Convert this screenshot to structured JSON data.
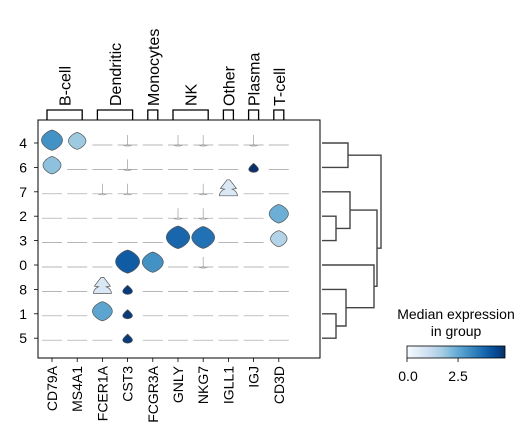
{
  "chart_data": {
    "type": "stacked_violin",
    "genes": [
      "CD79A",
      "MS4A1",
      "FCER1A",
      "CST3",
      "FCGR3A",
      "GNLY",
      "NKG7",
      "IGLL1",
      "IGJ",
      "CD3D"
    ],
    "groups": [
      "4",
      "6",
      "7",
      "2",
      "3",
      "0",
      "8",
      "1",
      "5"
    ],
    "gene_groups": [
      {
        "label": "B-cell",
        "genes": [
          "CD79A",
          "MS4A1"
        ]
      },
      {
        "label": "Dendritic",
        "genes": [
          "FCER1A",
          "CST3"
        ]
      },
      {
        "label": "Monocytes",
        "genes": [
          "FCGR3A"
        ]
      },
      {
        "label": "NK",
        "genes": [
          "GNLY",
          "NKG7"
        ]
      },
      {
        "label": "Other",
        "genes": [
          "IGLL1"
        ]
      },
      {
        "label": "Plasma",
        "genes": [
          "IGJ"
        ]
      },
      {
        "label": "T-cell",
        "genes": [
          "CD3D"
        ]
      }
    ],
    "median_expression": [
      [
        3.0,
        1.8,
        0.0,
        0.3,
        0.0,
        0.4,
        0.4,
        0.0,
        0.5,
        0.0
      ],
      [
        2.0,
        0.0,
        0.0,
        0.1,
        0.0,
        0.0,
        0.0,
        0.0,
        4.8,
        0.0
      ],
      [
        0.0,
        0.0,
        0.3,
        0.3,
        0.0,
        0.0,
        0.1,
        0.7,
        0.0,
        0.0
      ],
      [
        0.0,
        0.0,
        0.0,
        0.0,
        0.0,
        0.1,
        0.1,
        0.0,
        0.0,
        2.4
      ],
      [
        0.0,
        0.0,
        0.0,
        0.0,
        0.0,
        3.8,
        3.6,
        0.0,
        0.0,
        1.5
      ],
      [
        0.0,
        0.0,
        0.0,
        4.0,
        3.0,
        0.0,
        0.2,
        0.0,
        0.0,
        0.0
      ],
      [
        0.0,
        0.0,
        0.7,
        4.6,
        0.0,
        0.0,
        0.0,
        0.0,
        0.0,
        0.0
      ],
      [
        0.0,
        0.0,
        2.6,
        4.6,
        0.0,
        0.0,
        0.0,
        0.0,
        0.0,
        0.0
      ],
      [
        0.0,
        0.0,
        0.0,
        4.6,
        0.0,
        0.0,
        0.0,
        0.0,
        0.0,
        0.0
      ]
    ],
    "colorbar": {
      "title": "Median expression\nin group",
      "ticks": [
        0.0,
        2.5
      ],
      "tick_labels": [
        "0.0",
        "2.5"
      ],
      "range": [
        0,
        4.8
      ],
      "colormap": [
        "#f7fbff",
        "#deebf7",
        "#c6dbef",
        "#9ecae1",
        "#6baed6",
        "#4292c6",
        "#2171b5",
        "#08519c",
        "#08306b"
      ]
    },
    "dendrogram": true,
    "grid": false
  }
}
